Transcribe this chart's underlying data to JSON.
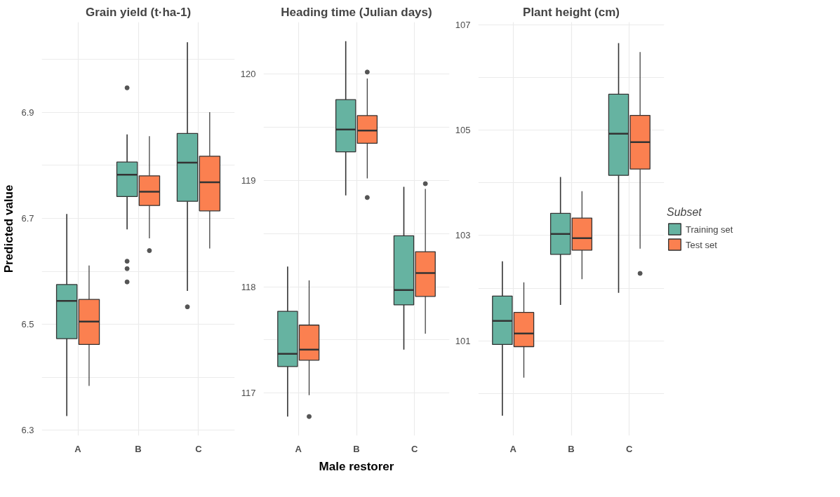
{
  "chart_data": [
    {
      "type": "box",
      "title": "Grain yield (t·ha-1)",
      "ylabel": "Predicted value",
      "categories": [
        "A",
        "B",
        "C"
      ],
      "ylim": [
        6.29,
        7.07
      ],
      "yticks": [
        6.3,
        {
          "value": 6.4,
          "label": null
        },
        6.5,
        {
          "value": 6.6,
          "label": null
        },
        6.7,
        {
          "value": 6.8,
          "label": null
        },
        6.9,
        {
          "value": 7.0,
          "label": null
        }
      ],
      "grid": true,
      "legend": false,
      "series": [
        {
          "color": "#66b3a1",
          "boxes": [
            {
              "low": 6.327,
              "q1": 6.473,
              "median": 6.544,
              "q3": 6.575,
              "high": 6.708
            },
            {
              "low": 6.679,
              "q1": 6.741,
              "median": 6.782,
              "q3": 6.806,
              "high": 6.858,
              "outliers": [
                6.946,
                6.619,
                6.605,
                6.58
              ]
            },
            {
              "low": 6.563,
              "q1": 6.732,
              "median": 6.805,
              "q3": 6.86,
              "high": 7.032,
              "outliers": [
                6.533
              ]
            }
          ]
        },
        {
          "color": "#fb8050",
          "boxes": [
            {
              "low": 6.384,
              "q1": 6.462,
              "median": 6.505,
              "q3": 6.547,
              "high": 6.611
            },
            {
              "low": 6.662,
              "q1": 6.724,
              "median": 6.75,
              "q3": 6.78,
              "high": 6.855,
              "outliers": [
                6.639
              ]
            },
            {
              "low": 6.643,
              "q1": 6.714,
              "median": 6.768,
              "q3": 6.817,
              "high": 6.9
            }
          ]
        }
      ]
    },
    {
      "type": "box",
      "title": "Heading time (Julian days)",
      "xlabel": "Male restorer",
      "categories": [
        "A",
        "B",
        "C"
      ],
      "ylim": [
        116.6,
        120.49
      ],
      "yticks": [
        117,
        {
          "value": 117.5,
          "label": null
        },
        118,
        {
          "value": 118.5,
          "label": null
        },
        119,
        {
          "value": 119.5,
          "label": null
        },
        120
      ],
      "grid": true,
      "legend": false,
      "series": [
        {
          "color": "#66b3a1",
          "boxes": [
            {
              "low": 116.78,
              "q1": 117.25,
              "median": 117.37,
              "q3": 117.77,
              "high": 118.19
            },
            {
              "low": 118.86,
              "q1": 119.27,
              "median": 119.48,
              "q3": 119.76,
              "high": 120.31
            },
            {
              "low": 117.41,
              "q1": 117.83,
              "median": 117.97,
              "q3": 118.48,
              "high": 118.94
            }
          ]
        },
        {
          "color": "#fb8050",
          "boxes": [
            {
              "low": 116.98,
              "q1": 117.31,
              "median": 117.41,
              "q3": 117.64,
              "high": 118.06,
              "outliers": [
                116.78
              ]
            },
            {
              "low": 119.02,
              "q1": 119.35,
              "median": 119.47,
              "q3": 119.61,
              "high": 119.96,
              "outliers": [
                120.02,
                118.84
              ]
            },
            {
              "low": 117.56,
              "q1": 117.91,
              "median": 118.13,
              "q3": 118.33,
              "high": 118.92,
              "outliers": [
                118.97
              ]
            }
          ]
        }
      ]
    },
    {
      "type": "box",
      "title": "Plant height (cm)",
      "legend_title": "Subset",
      "categories": [
        "A",
        "B",
        "C"
      ],
      "ylim": [
        99.2,
        107.05
      ],
      "yticks": [
        {
          "value": 100,
          "label": null
        },
        101,
        {
          "value": 102,
          "label": null
        },
        103,
        {
          "value": 104,
          "label": null
        },
        105,
        {
          "value": 106,
          "label": null
        },
        107
      ],
      "grid": true,
      "legend": "right",
      "series": [
        {
          "name": "Training set",
          "color": "#66b3a1",
          "boxes": [
            {
              "low": 99.58,
              "q1": 100.93,
              "median": 101.38,
              "q3": 101.85,
              "high": 102.51
            },
            {
              "low": 101.68,
              "q1": 102.64,
              "median": 103.03,
              "q3": 103.42,
              "high": 104.11
            },
            {
              "low": 101.91,
              "q1": 104.14,
              "median": 104.93,
              "q3": 105.68,
              "high": 106.65
            }
          ]
        },
        {
          "name": "Test set",
          "color": "#fb8050",
          "boxes": [
            {
              "low": 100.3,
              "q1": 100.89,
              "median": 101.14,
              "q3": 101.54,
              "high": 102.11
            },
            {
              "low": 102.17,
              "q1": 102.72,
              "median": 102.95,
              "q3": 103.33,
              "high": 103.84
            },
            {
              "low": 102.75,
              "q1": 104.26,
              "median": 104.77,
              "q3": 105.28,
              "high": 106.48,
              "outliers": [
                102.28
              ]
            }
          ]
        }
      ]
    }
  ]
}
